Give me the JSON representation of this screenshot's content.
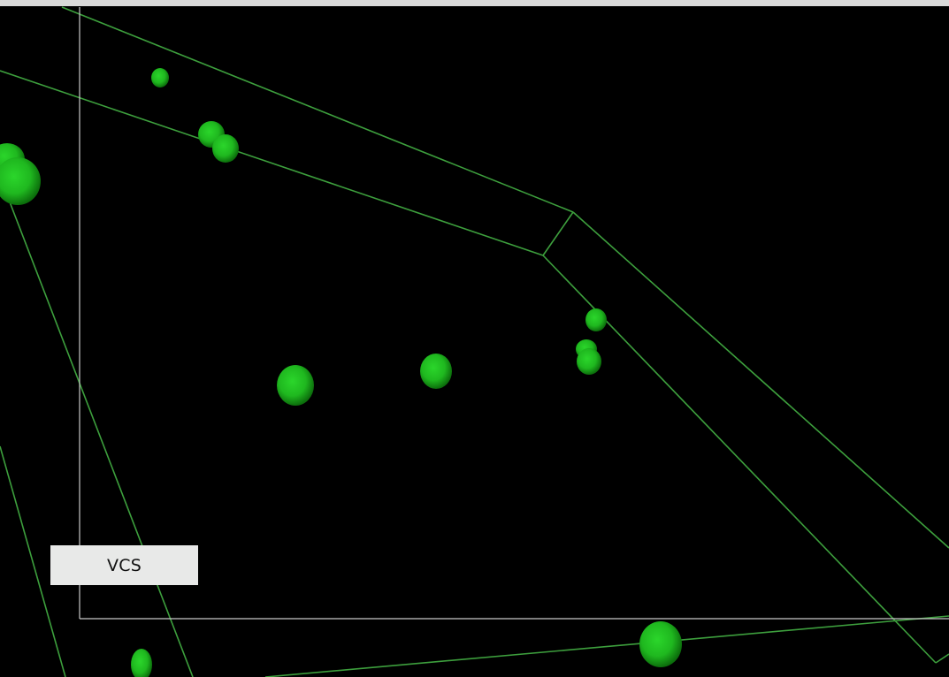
{
  "viewport": {
    "background_color": "#000000",
    "top_strip_color": "#d9d9d9",
    "outline_color": "#3fa33f",
    "frame_color": "#c9c9c9",
    "sphere_color": "#22cc22"
  },
  "label": {
    "text": "VCS"
  }
}
